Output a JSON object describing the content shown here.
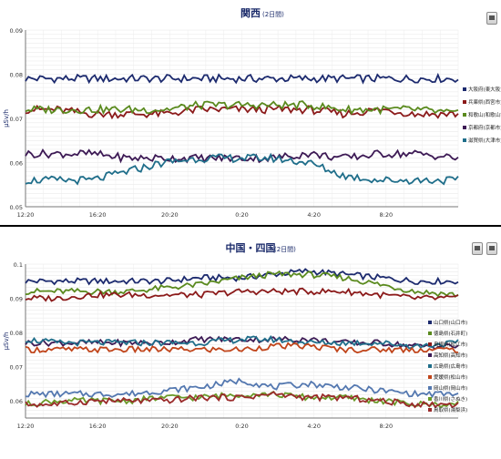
{
  "charts": [
    {
      "title": "関西",
      "subtitle": "(2日間)",
      "ylabel": "µSv/h",
      "xticks": [
        "12:20",
        "16:20",
        "20:20",
        "0:20",
        "4:20",
        "8:20"
      ],
      "yticks": [
        "0.05",
        "0.06",
        "0.07",
        "0.08",
        "0.09"
      ],
      "ylim": [
        0.05,
        0.09
      ]
    },
    {
      "title": "中国・四国",
      "subtitle": "(2日間)",
      "ylabel": "µSv/h",
      "xticks": [
        "12:20",
        "16:20",
        "20:20",
        "0:20",
        "4:20",
        "8:20"
      ],
      "yticks": [
        "0.06",
        "0.07",
        "0.08",
        "0.09",
        "0.1"
      ],
      "ylim": [
        0.055,
        0.1
      ]
    }
  ],
  "chart_data": [
    {
      "type": "line",
      "title": "関西",
      "subtitle": "(2日間)",
      "ylabel": "µSv/h",
      "ylim": [
        0.05,
        0.09
      ],
      "x_ticks": [
        "12:20",
        "16:20",
        "20:20",
        "0:20",
        "4:20",
        "8:20"
      ],
      "grid": true,
      "legend_position": "right",
      "series": [
        {
          "name": "大阪府(東大阪)",
          "color": "#1c2a6e",
          "x": [
            12.33,
            14,
            16,
            18,
            20,
            22,
            24.33,
            26,
            28,
            30,
            32,
            34,
            36.33
          ],
          "y": [
            0.079,
            0.079,
            0.079,
            0.079,
            0.079,
            0.079,
            0.079,
            0.079,
            0.079,
            0.079,
            0.079,
            0.079,
            0.079
          ]
        },
        {
          "name": "兵庫県(西宮市)",
          "color": "#8b1a1a",
          "x": [
            12.33,
            14,
            16,
            18,
            20,
            22,
            24.33,
            26,
            28,
            30,
            32,
            34,
            36.33
          ],
          "y": [
            0.072,
            0.072,
            0.071,
            0.071,
            0.071,
            0.072,
            0.072,
            0.072,
            0.072,
            0.071,
            0.072,
            0.071,
            0.071
          ]
        },
        {
          "name": "和歌山(和歌山市)",
          "color": "#5a8a1e",
          "x": [
            12.33,
            14,
            16,
            18,
            20,
            22,
            24.33,
            26,
            28,
            30,
            32,
            34,
            36.33
          ],
          "y": [
            0.072,
            0.072,
            0.072,
            0.072,
            0.072,
            0.073,
            0.073,
            0.073,
            0.073,
            0.072,
            0.072,
            0.072,
            0.071
          ]
        },
        {
          "name": "京都府(京都市)",
          "color": "#3d1a55",
          "x": [
            12.33,
            14,
            16,
            18,
            20,
            22,
            24.33,
            26,
            28,
            30,
            32,
            34,
            36.33
          ],
          "y": [
            0.062,
            0.062,
            0.062,
            0.061,
            0.061,
            0.061,
            0.061,
            0.061,
            0.062,
            0.061,
            0.062,
            0.062,
            0.061
          ]
        },
        {
          "name": "滋賀県(大津市)",
          "color": "#1f6e8a",
          "x": [
            12.33,
            14,
            16,
            18,
            20,
            22,
            24.33,
            26,
            28,
            30,
            32,
            34,
            36.33
          ],
          "y": [
            0.056,
            0.056,
            0.056,
            0.058,
            0.06,
            0.061,
            0.061,
            0.061,
            0.06,
            0.057,
            0.056,
            0.056,
            0.056
          ]
        }
      ]
    },
    {
      "type": "line",
      "title": "中国・四国",
      "subtitle": "(2日間)",
      "ylabel": "µSv/h",
      "ylim": [
        0.055,
        0.1
      ],
      "x_ticks": [
        "12:20",
        "16:20",
        "20:20",
        "0:20",
        "4:20",
        "8:20"
      ],
      "grid": true,
      "legend_position": "right",
      "series": [
        {
          "name": "山口県(山口市)",
          "color": "#1c2a6e",
          "x": [
            12.33,
            14,
            16,
            18,
            20,
            22,
            24.33,
            26,
            28,
            30,
            32,
            34,
            36.33
          ],
          "y": [
            0.095,
            0.095,
            0.095,
            0.095,
            0.095,
            0.096,
            0.096,
            0.097,
            0.098,
            0.097,
            0.096,
            0.095,
            0.095
          ]
        },
        {
          "name": "徳島県(石井町)",
          "color": "#5a8a1e",
          "x": [
            12.33,
            14,
            16,
            18,
            20,
            22,
            24.33,
            26,
            28,
            30,
            32,
            34,
            36.33
          ],
          "y": [
            0.092,
            0.092,
            0.092,
            0.092,
            0.093,
            0.094,
            0.096,
            0.097,
            0.097,
            0.096,
            0.094,
            0.092,
            0.091
          ]
        },
        {
          "name": "島根県(松江市)",
          "color": "#8b1a1a",
          "x": [
            12.33,
            14,
            16,
            18,
            20,
            22,
            24.33,
            26,
            28,
            30,
            32,
            34,
            36.33
          ],
          "y": [
            0.09,
            0.09,
            0.091,
            0.091,
            0.091,
            0.091,
            0.092,
            0.092,
            0.092,
            0.092,
            0.091,
            0.09,
            0.09
          ]
        },
        {
          "name": "高知県(高知市)",
          "color": "#3d1a55",
          "x": [
            12.33,
            14,
            16,
            18,
            20,
            22,
            24.33,
            26,
            28,
            30,
            32,
            34,
            36.33
          ],
          "y": [
            0.077,
            0.077,
            0.077,
            0.077,
            0.077,
            0.078,
            0.078,
            0.078,
            0.078,
            0.077,
            0.077,
            0.076,
            0.076
          ]
        },
        {
          "name": "広島県(広島市)",
          "color": "#1f6e8a",
          "x": [
            12.33,
            14,
            16,
            18,
            20,
            22,
            24.33,
            26,
            28,
            30,
            32,
            34,
            36.33
          ],
          "y": [
            0.078,
            0.077,
            0.077,
            0.077,
            0.077,
            0.077,
            0.078,
            0.078,
            0.077,
            0.077,
            0.077,
            0.076,
            0.077
          ]
        },
        {
          "name": "愛媛県(松山市)",
          "color": "#c0441a",
          "x": [
            12.33,
            14,
            16,
            18,
            20,
            22,
            24.33,
            26,
            28,
            30,
            32,
            34,
            36.33
          ],
          "y": [
            0.075,
            0.075,
            0.075,
            0.075,
            0.075,
            0.075,
            0.075,
            0.076,
            0.076,
            0.075,
            0.075,
            0.075,
            0.075
          ]
        },
        {
          "name": "岡山県(岡山市)",
          "color": "#5478b0",
          "x": [
            12.33,
            14,
            16,
            18,
            20,
            22,
            24.33,
            26,
            28,
            30,
            32,
            34,
            36.33
          ],
          "y": [
            0.062,
            0.062,
            0.062,
            0.062,
            0.063,
            0.064,
            0.066,
            0.064,
            0.065,
            0.064,
            0.063,
            0.062,
            0.062
          ]
        },
        {
          "name": "香川県(さぬき)",
          "color": "#6a9a28",
          "x": [
            12.33,
            14,
            16,
            18,
            20,
            22,
            24.33,
            26,
            28,
            30,
            32,
            34,
            36.33
          ],
          "y": [
            0.059,
            0.06,
            0.06,
            0.06,
            0.061,
            0.061,
            0.062,
            0.062,
            0.061,
            0.061,
            0.06,
            0.059,
            0.059
          ]
        },
        {
          "name": "鳥取県(湯梨浜)",
          "color": "#9a2a2a",
          "x": [
            12.33,
            14,
            16,
            18,
            20,
            22,
            24.33,
            26,
            28,
            30,
            32,
            34,
            36.33
          ],
          "y": [
            0.059,
            0.059,
            0.06,
            0.06,
            0.06,
            0.061,
            0.061,
            0.062,
            0.061,
            0.061,
            0.06,
            0.059,
            0.059
          ]
        }
      ]
    }
  ]
}
